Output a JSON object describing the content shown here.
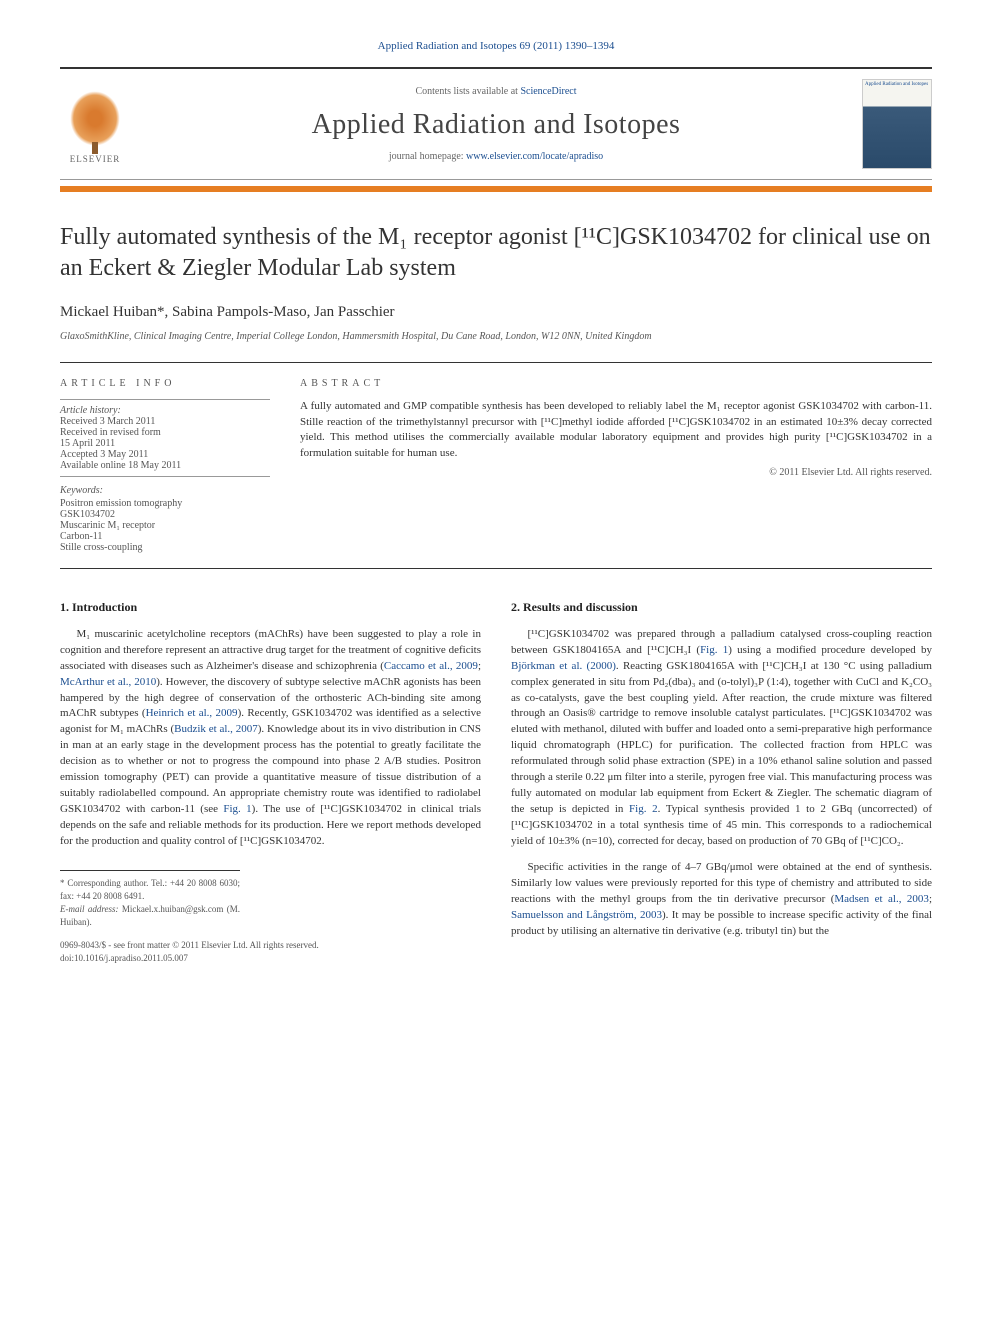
{
  "journal_ref": "Applied Radiation and Isotopes 69 (2011) 1390–1394",
  "header": {
    "elsevier": "ELSEVIER",
    "contents_prefix": "Contents lists available at ",
    "contents_link": "ScienceDirect",
    "journal_name": "Applied Radiation and Isotopes",
    "homepage_prefix": "journal homepage: ",
    "homepage_link": "www.elsevier.com/locate/apradiso",
    "cover_title": "Applied Radiation and Isotopes"
  },
  "title": "Fully automated synthesis of the M₁ receptor agonist [¹¹C]GSK1034702 for clinical use on an Eckert & Ziegler Modular Lab system",
  "authors": "Mickael Huiban*, Sabina Pampols-Maso, Jan Passchier",
  "affiliation": "GlaxoSmithKline, Clinical Imaging Centre, Imperial College London, Hammersmith Hospital, Du Cane Road, London, W12 0NN, United Kingdom",
  "info": {
    "label": "ARTICLE INFO",
    "history_label": "Article history:",
    "received": "Received 3 March 2011",
    "revised": "Received in revised form",
    "revised_date": "15 April 2011",
    "accepted": "Accepted 3 May 2011",
    "online": "Available online 18 May 2011",
    "keywords_label": "Keywords:",
    "keywords": [
      "Positron emission tomography",
      "GSK1034702",
      "Muscarinic M₁ receptor",
      "Carbon-11",
      "Stille cross-coupling"
    ]
  },
  "abstract": {
    "label": "ABSTRACT",
    "text": "A fully automated and GMP compatible synthesis has been developed to reliably label the M₁ receptor agonist GSK1034702 with carbon-11. Stille reaction of the trimethylstannyl precursor with [¹¹C]methyl iodide afforded [¹¹C]GSK1034702 in an estimated 10±3% decay corrected yield. This method utilises the commercially available modular laboratory equipment and provides high purity [¹¹C]GSK1034702 in a formulation suitable for human use.",
    "copyright": "© 2011 Elsevier Ltd. All rights reserved."
  },
  "sections": {
    "intro_heading": "1. Introduction",
    "intro_p1a": "M₁ muscarinic acetylcholine receptors (mAChRs) have been suggested to play a role in cognition and therefore represent an attractive drug target for the treatment of cognitive deficits associated with diseases such as Alzheimer's disease and schizophrenia (",
    "intro_cite1": "Caccamo et al., 2009",
    "intro_sep1": "; ",
    "intro_cite2": "McArthur et al., 2010",
    "intro_p1b": "). However, the discovery of subtype selective mAChR agonists has been hampered by the high degree of conservation of the orthosteric ACh-binding site among mAChR subtypes (",
    "intro_cite3": "Heinrich et al., 2009",
    "intro_p1c": "). Recently, GSK1034702 was identified as a selective agonist for M₁ mAChRs (",
    "intro_cite4": "Budzik et al., 2007",
    "intro_p1d": "). Knowledge about its in vivo distribution in CNS in man at an early stage in the development process has the potential to greatly facilitate the decision as to whether or not to progress the compound into phase 2 A/B studies. Positron emission tomography (PET) can provide a quantitative measure of tissue distribution of a suitably radiolabelled compound. An appropriate chemistry route was identified to radiolabel GSK1034702 with carbon-11 (see ",
    "intro_fig1": "Fig. 1",
    "intro_p1e": "). The use of [¹¹C]GSK1034702 in clinical trials depends on the safe and reliable methods for its production. Here we report methods developed for the production and quality control of [¹¹C]GSK1034702.",
    "results_heading": "2. Results and discussion",
    "results_p1a": "[¹¹C]GSK1034702 was prepared through a palladium catalysed cross-coupling reaction between GSK1804165A and [¹¹C]CH₃I (",
    "results_fig1": "Fig. 1",
    "results_p1b": ") using a modified procedure developed by ",
    "results_cite1": "Björkman et al. (2000)",
    "results_p1c": ". Reacting GSK1804165A with [¹¹C]CH₃I at 130 °C using palladium complex generated in situ from Pd₂(dba)₃ and (o-tolyl)₃P (1:4), together with CuCl and K₂CO₃ as co-catalysts, gave the best coupling yield. After reaction, the crude mixture was filtered through an Oasis® cartridge to remove insoluble catalyst particulates. [¹¹C]GSK1034702 was eluted with methanol, diluted with buffer and loaded onto a semi-preparative high performance liquid chromatograph (HPLC) for purification. The collected fraction from HPLC was reformulated through solid phase extraction (SPE) in a 10% ethanol saline solution and passed through a sterile 0.22 μm filter into a sterile, pyrogen free vial. This manufacturing process was fully automated on modular lab equipment from Eckert & Ziegler. The schematic diagram of the setup is depicted in ",
    "results_fig2": "Fig. 2",
    "results_p1d": ". Typical synthesis provided 1 to 2 GBq (uncorrected) of [¹¹C]GSK1034702 in a total synthesis time of 45 min. This corresponds to a radiochemical yield of 10±3% (n=10), corrected for decay, based on production of 70 GBq of [¹¹C]CO₂.",
    "results_p2a": "Specific activities in the range of 4–7 GBq/μmol were obtained at the end of synthesis. Similarly low values were previously reported for this type of chemistry and attributed to side reactions with the methyl groups from the tin derivative precursor (",
    "results_cite2": "Madsen et al., 2003",
    "results_sep2": "; ",
    "results_cite3": "Samuelsson and Långström, 2003",
    "results_p2b": "). It may be possible to increase specific activity of the final product by utilising an alternative tin derivative (e.g. tributyl tin) but the"
  },
  "footnote": {
    "corresponding": "* Corresponding author. Tel.: +44 20 8008 6030; fax: +44 20 8008 6491.",
    "email_label": "E-mail address:",
    "email": "Mickael.x.huiban@gsk.com (M. Huiban)."
  },
  "footer": {
    "line1": "0969-8043/$ - see front matter © 2011 Elsevier Ltd. All rights reserved.",
    "line2": "doi:10.1016/j.apradiso.2011.05.007"
  },
  "colors": {
    "link": "#1a4d8f",
    "orange": "#e67e22",
    "text": "#333333",
    "muted": "#555555"
  }
}
